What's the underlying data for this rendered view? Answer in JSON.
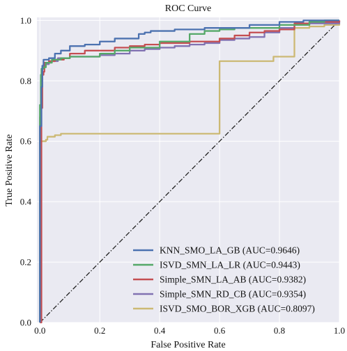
{
  "chart_data": {
    "type": "line",
    "title": "ROC Curve",
    "xlabel": "False Positive Rate",
    "ylabel": "True Positive Rate",
    "xlim": [
      -0.01,
      1.0
    ],
    "ylim": [
      0.0,
      1.01
    ],
    "xticks": [
      "0.0",
      "0.2",
      "0.4",
      "0.6",
      "0.8",
      "1.0"
    ],
    "yticks": [
      "0.0",
      "0.2",
      "0.4",
      "0.6",
      "0.8",
      "1.0"
    ],
    "grid": true,
    "legend_position": "bottom-right",
    "background": "#eaeaf2",
    "diagonal": {
      "points": [
        [
          0,
          0
        ],
        [
          1,
          1
        ]
      ],
      "color": "#222222",
      "style": "dash-dot"
    },
    "series": [
      {
        "name": "KNN_SMO_LA_GB (AUC=0.9646)",
        "color": "#4c72b0",
        "points": [
          [
            0,
            0
          ],
          [
            0,
            0.65
          ],
          [
            0.005,
            0.78
          ],
          [
            0.008,
            0.85
          ],
          [
            0.012,
            0.87
          ],
          [
            0.03,
            0.875
          ],
          [
            0.05,
            0.89
          ],
          [
            0.07,
            0.9
          ],
          [
            0.1,
            0.915
          ],
          [
            0.15,
            0.92
          ],
          [
            0.2,
            0.93
          ],
          [
            0.25,
            0.94
          ],
          [
            0.3,
            0.94
          ],
          [
            0.33,
            0.955
          ],
          [
            0.35,
            0.96
          ],
          [
            0.37,
            0.965
          ],
          [
            0.4,
            0.965
          ],
          [
            0.45,
            0.97
          ],
          [
            0.5,
            0.97
          ],
          [
            0.55,
            0.975
          ],
          [
            0.6,
            0.975
          ],
          [
            0.7,
            0.985
          ],
          [
            0.8,
            0.995
          ],
          [
            0.88,
            1.0
          ],
          [
            1.0,
            1.0
          ]
        ]
      },
      {
        "name": "ISVD_SMN_LA_LR (AUC=0.9443)",
        "color": "#55a868",
        "points": [
          [
            0,
            0
          ],
          [
            0,
            0.72
          ],
          [
            0.003,
            0.82
          ],
          [
            0.005,
            0.84
          ],
          [
            0.012,
            0.845
          ],
          [
            0.02,
            0.86
          ],
          [
            0.04,
            0.87
          ],
          [
            0.07,
            0.875
          ],
          [
            0.1,
            0.88
          ],
          [
            0.15,
            0.88
          ],
          [
            0.2,
            0.89
          ],
          [
            0.25,
            0.9
          ],
          [
            0.3,
            0.91
          ],
          [
            0.4,
            0.93
          ],
          [
            0.5,
            0.955
          ],
          [
            0.55,
            0.965
          ],
          [
            0.6,
            0.97
          ],
          [
            0.65,
            0.975
          ],
          [
            0.7,
            0.975
          ],
          [
            0.8,
            0.985
          ],
          [
            0.9,
            0.995
          ],
          [
            0.95,
            1.0
          ],
          [
            1.0,
            1.0
          ]
        ]
      },
      {
        "name": "Simple_SMN_LA_AB (AUC=0.9382)",
        "color": "#c44e52",
        "points": [
          [
            0,
            0
          ],
          [
            0.005,
            0.71
          ],
          [
            0.008,
            0.82
          ],
          [
            0.012,
            0.83
          ],
          [
            0.015,
            0.86
          ],
          [
            0.03,
            0.865
          ],
          [
            0.05,
            0.87
          ],
          [
            0.08,
            0.875
          ],
          [
            0.1,
            0.89
          ],
          [
            0.15,
            0.9
          ],
          [
            0.2,
            0.9
          ],
          [
            0.25,
            0.91
          ],
          [
            0.3,
            0.915
          ],
          [
            0.35,
            0.92
          ],
          [
            0.4,
            0.925
          ],
          [
            0.45,
            0.925
          ],
          [
            0.5,
            0.93
          ],
          [
            0.55,
            0.93
          ],
          [
            0.6,
            0.94
          ],
          [
            0.65,
            0.95
          ],
          [
            0.7,
            0.96
          ],
          [
            0.75,
            0.965
          ],
          [
            0.8,
            0.97
          ],
          [
            0.85,
            0.99
          ],
          [
            0.9,
            0.995
          ],
          [
            1.0,
            1.0
          ]
        ]
      },
      {
        "name": "Simple_SMN_RD_CB (AUC=0.9354)",
        "color": "#8172b2",
        "points": [
          [
            0,
            0
          ],
          [
            0,
            0.68
          ],
          [
            0.003,
            0.8
          ],
          [
            0.008,
            0.84
          ],
          [
            0.015,
            0.855
          ],
          [
            0.03,
            0.865
          ],
          [
            0.06,
            0.875
          ],
          [
            0.1,
            0.88
          ],
          [
            0.15,
            0.88
          ],
          [
            0.2,
            0.885
          ],
          [
            0.25,
            0.89
          ],
          [
            0.3,
            0.9
          ],
          [
            0.35,
            0.905
          ],
          [
            0.4,
            0.91
          ],
          [
            0.45,
            0.915
          ],
          [
            0.5,
            0.92
          ],
          [
            0.55,
            0.925
          ],
          [
            0.6,
            0.935
          ],
          [
            0.65,
            0.94
          ],
          [
            0.7,
            0.945
          ],
          [
            0.75,
            0.96
          ],
          [
            0.8,
            0.975
          ],
          [
            0.85,
            0.985
          ],
          [
            0.9,
            0.99
          ],
          [
            1.0,
            1.0
          ]
        ]
      },
      {
        "name": "ISVD_SMO_BOR_XGB (AUC=0.8097)",
        "color": "#ccb974",
        "points": [
          [
            0,
            0
          ],
          [
            0,
            0.6
          ],
          [
            0.02,
            0.605
          ],
          [
            0.025,
            0.615
          ],
          [
            0.05,
            0.62
          ],
          [
            0.07,
            0.625
          ],
          [
            0.6,
            0.865
          ],
          [
            0.67,
            0.865
          ],
          [
            0.78,
            0.88
          ],
          [
            0.85,
            0.975
          ],
          [
            0.9,
            0.98
          ],
          [
            0.95,
            0.985
          ],
          [
            1.0,
            0.99
          ]
        ]
      }
    ]
  }
}
